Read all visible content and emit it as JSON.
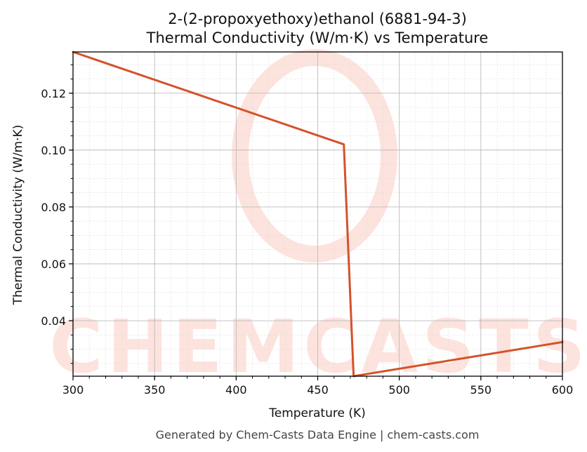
{
  "chart_data": {
    "type": "line",
    "title": "2-(2-propoxyethoxy)ethanol (6881-94-3)",
    "subtitle": "Thermal Conductivity (W/m·K) vs Temperature",
    "xlabel": "Temperature (K)",
    "ylabel": "Thermal Conductivity (W/m·K)",
    "xlim": [
      300,
      600
    ],
    "ylim": [
      0.0205,
      0.1345
    ],
    "xticks": [
      300,
      350,
      400,
      450,
      500,
      550,
      600
    ],
    "yticks": [
      0.04,
      0.06,
      0.08,
      0.1,
      0.12
    ],
    "xtick_labels": [
      "300",
      "350",
      "400",
      "450",
      "500",
      "550",
      "600"
    ],
    "ytick_labels": [
      "0.04",
      "0.06",
      "0.08",
      "0.10",
      "0.12"
    ],
    "grid": true,
    "series": [
      {
        "color": "#d4522a",
        "x": [
          300,
          466,
          472,
          600
        ],
        "y": [
          0.1345,
          0.102,
          0.0205,
          0.0325
        ]
      }
    ]
  },
  "watermark": {
    "text": "CHEMCASTS",
    "color": "#fde3dd"
  },
  "footer": "Generated by Chem-Casts Data Engine | chem-casts.com"
}
